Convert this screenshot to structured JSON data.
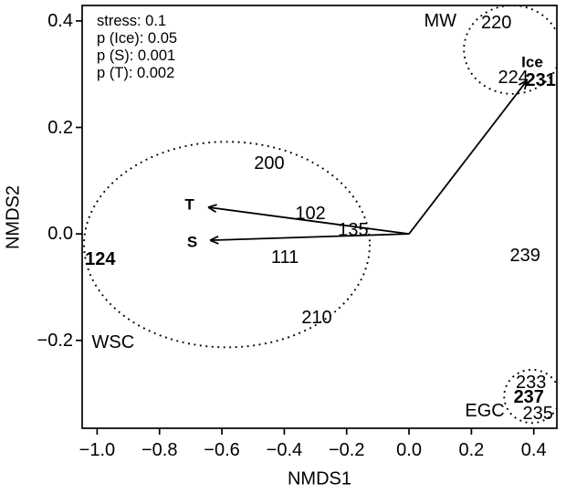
{
  "colors": {
    "foreground": "#000000",
    "background": "#ffffff"
  },
  "chart_data": {
    "type": "scatter",
    "xlabel": "NMDS1",
    "ylabel": "NMDS2",
    "xlim": [
      -1.048,
      0.474
    ],
    "ylim": [
      -0.365,
      0.429
    ],
    "grid": false,
    "legend": "none",
    "x_ticks": [
      -1.0,
      -0.8,
      -0.6,
      -0.4,
      -0.2,
      0.0,
      0.2,
      0.4
    ],
    "x_tick_labels": [
      "−1.0",
      "−0.8",
      "−0.6",
      "−0.4",
      "−0.2",
      "0.0",
      "0.2",
      "0.4"
    ],
    "y_ticks": [
      0.4,
      0.2,
      0.0,
      -0.2
    ],
    "y_tick_labels": [
      "0.4",
      "0.2",
      "0.0",
      "−0.2"
    ],
    "stats": {
      "lines": [
        "stress: 0.1",
        "p (Ice): 0.05",
        "p (S): 0.001",
        "p (T): 0.002"
      ]
    },
    "sites": [
      {
        "label": "220",
        "x": 0.28,
        "y": 0.396,
        "bold": false
      },
      {
        "label": "224",
        "x": 0.334,
        "y": 0.293,
        "bold": false
      },
      {
        "label": "231",
        "x": 0.422,
        "y": 0.289,
        "bold": true
      },
      {
        "label": "200",
        "x": -0.448,
        "y": 0.132,
        "bold": false
      },
      {
        "label": "102",
        "x": -0.316,
        "y": 0.038,
        "bold": false
      },
      {
        "label": "135",
        "x": -0.179,
        "y": 0.007,
        "bold": false
      },
      {
        "label": "111",
        "x": -0.398,
        "y": -0.045,
        "bold": false
      },
      {
        "label": "124",
        "x": -0.99,
        "y": -0.048,
        "bold": true
      },
      {
        "label": "210",
        "x": -0.296,
        "y": -0.158,
        "bold": false
      },
      {
        "label": "239",
        "x": 0.372,
        "y": -0.041,
        "bold": false
      },
      {
        "label": "233",
        "x": 0.391,
        "y": -0.279,
        "bold": false
      },
      {
        "label": "237",
        "x": 0.384,
        "y": -0.306,
        "bold": true
      },
      {
        "label": "235",
        "x": 0.413,
        "y": -0.338,
        "bold": false
      }
    ],
    "group_labels": [
      {
        "label": "MW",
        "x": 0.1,
        "y": 0.4
      },
      {
        "label": "WSC",
        "x": -0.949,
        "y": -0.204
      },
      {
        "label": "EGC",
        "x": 0.243,
        "y": -0.332
      }
    ],
    "vectors": [
      {
        "label": "T",
        "x": -0.644,
        "y": 0.05,
        "label_x": -0.704,
        "label_y": 0.056
      },
      {
        "label": "S",
        "x": -0.638,
        "y": -0.012,
        "label_x": -0.695,
        "label_y": -0.015
      },
      {
        "label": "Ice",
        "x": 0.378,
        "y": 0.288,
        "label_x": 0.395,
        "label_y": 0.322
      }
    ],
    "ellipses": [
      {
        "group": "WSC",
        "cx": -0.584,
        "cy": -0.02,
        "rx": 0.458,
        "ry": 0.193
      },
      {
        "group": "MW",
        "cx": 0.331,
        "cy": 0.346,
        "rx": 0.155,
        "ry": 0.083
      },
      {
        "group": "EGC",
        "cx": 0.394,
        "cy": -0.305,
        "rx": 0.089,
        "ry": 0.05
      }
    ]
  }
}
